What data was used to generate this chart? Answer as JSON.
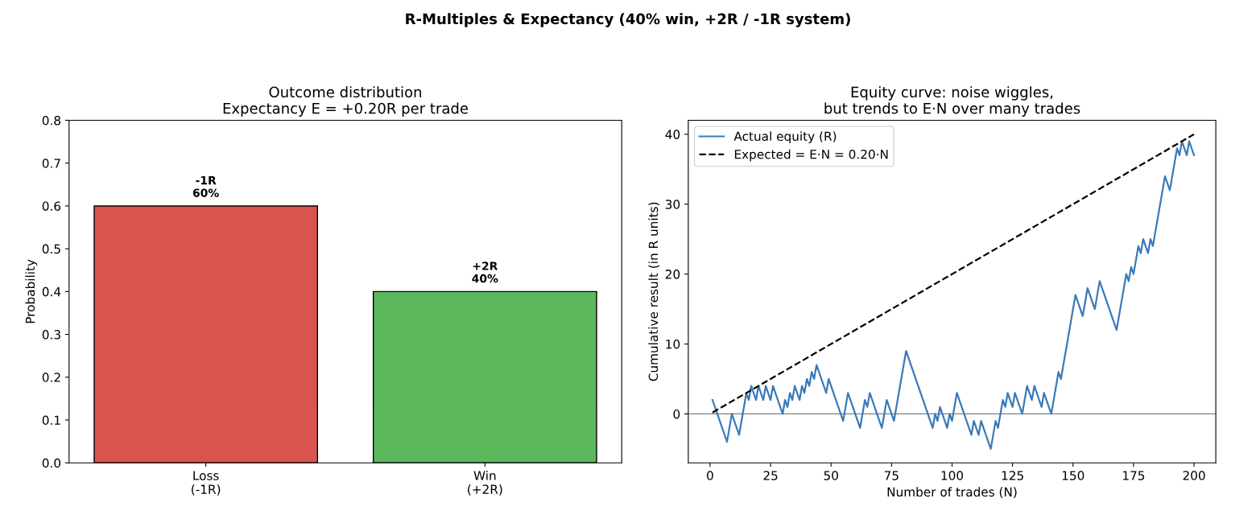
{
  "chart_data": [
    {
      "type": "bar",
      "title": "Outcome distribution\nExpectancy E = +0.20R per trade",
      "annotations": [
        "R-Multiples & Expectancy (40% win, +2R / -1R system)"
      ],
      "ylabel": "Probability",
      "categories": [
        "Loss\n(-1R)",
        "Win\n(+2R)"
      ],
      "values": [
        0.6,
        0.4
      ],
      "colors": [
        "#d9534f",
        "#5cb85c"
      ],
      "value_labels": [
        "-1R\n60%",
        "+2R\n40%"
      ],
      "ylim": [
        0,
        0.8
      ],
      "yticks": [
        {
          "value": 0,
          "label": "0.0"
        },
        0.1,
        0.2,
        0.3,
        0.4,
        0.5,
        0.6,
        0.7,
        0.8
      ],
      "grid": false,
      "legend": false
    },
    {
      "type": "line",
      "title": "Equity curve: noise wiggles,\nbut trends to E·N over many trades",
      "xlabel": "Number of trades (N)",
      "ylabel": "Cumulative result (in R units)",
      "xlim": [
        -9,
        209
      ],
      "xticks": [
        0,
        25,
        50,
        75,
        100,
        125,
        150,
        175,
        200
      ],
      "ylim": [
        -7,
        42
      ],
      "yticks": [
        0,
        10,
        20,
        30,
        40
      ],
      "grid": false,
      "legend": "top left",
      "ref_lines": [
        {
          "axis": "y",
          "value": 0,
          "label": null,
          "color": "#808080"
        }
      ],
      "series": [
        {
          "name": "Actual equity (R)",
          "color": "#3a7ab8",
          "line_style": "solid",
          "x": [
            1,
            7,
            9,
            12,
            15,
            16,
            17,
            19,
            20,
            22,
            23,
            25,
            26,
            30,
            31,
            32,
            33,
            34,
            35,
            37,
            38,
            39,
            40,
            41,
            42,
            43,
            44,
            48,
            49,
            55,
            57,
            62,
            64,
            65,
            66,
            71,
            73,
            76,
            81,
            92,
            93,
            94,
            95,
            98,
            99,
            100,
            102,
            108,
            109,
            111,
            112,
            116,
            118,
            119,
            121,
            122,
            123,
            125,
            126,
            129,
            131,
            133,
            134,
            137,
            138,
            141,
            144,
            145,
            151,
            154,
            156,
            159,
            161,
            168,
            172,
            173,
            174,
            175,
            177,
            178,
            179,
            181,
            182,
            183,
            188,
            190,
            193,
            194,
            195,
            197,
            198,
            200
          ],
          "values": [
            2,
            -4,
            0,
            -3,
            3,
            2,
            4,
            2,
            4,
            2,
            4,
            2,
            4,
            0,
            2,
            1,
            3,
            2,
            4,
            2,
            4,
            3,
            5,
            4,
            6,
            5,
            7,
            3,
            5,
            -1,
            3,
            -2,
            2,
            1,
            3,
            -2,
            2,
            -1,
            9,
            -2,
            0,
            -1,
            1,
            -2,
            0,
            -1,
            3,
            -3,
            -1,
            -3,
            -1,
            -5,
            -1,
            -2,
            2,
            1,
            3,
            1,
            3,
            0,
            4,
            2,
            4,
            1,
            3,
            0,
            6,
            5,
            17,
            14,
            18,
            15,
            19,
            12,
            20,
            19,
            21,
            20,
            24,
            23,
            25,
            23,
            25,
            24,
            34,
            32,
            38,
            37,
            39,
            37,
            39,
            37
          ]
        },
        {
          "name": "Expected = E·N = 0.20·N",
          "color": "#000000",
          "line_style": "dashed",
          "x": [
            1,
            200
          ],
          "values": [
            0.2,
            40
          ]
        }
      ]
    }
  ]
}
